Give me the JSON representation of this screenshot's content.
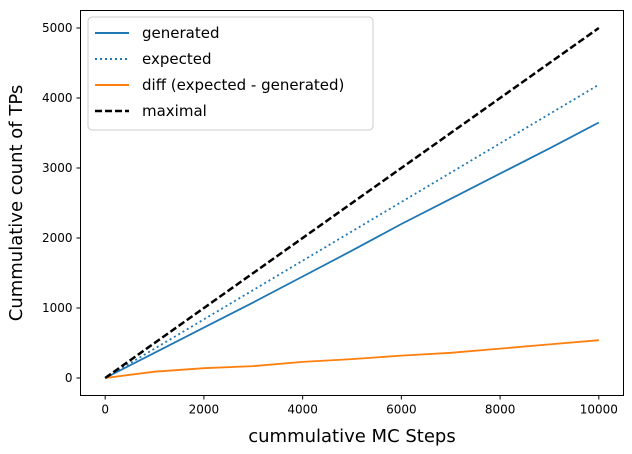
{
  "chart_data": {
    "type": "line",
    "title": "",
    "xlabel": "cummulative MC Steps",
    "ylabel": "Cummulative count of TPs",
    "xlim": [
      -500,
      10500
    ],
    "ylim": [
      -250,
      5250
    ],
    "xticks": [
      0,
      2000,
      4000,
      6000,
      8000,
      10000
    ],
    "yticks": [
      0,
      1000,
      2000,
      3000,
      4000,
      5000
    ],
    "grid": false,
    "legend_position": "top-left",
    "series": [
      {
        "name": "generated",
        "style": "solid",
        "color": "#1f77b4",
        "x": [
          0,
          1000,
          2000,
          3000,
          4000,
          5000,
          6000,
          7000,
          8000,
          9000,
          10000
        ],
        "y": [
          0,
          360,
          720,
          1080,
          1450,
          1820,
          2200,
          2560,
          2920,
          3280,
          3650
        ]
      },
      {
        "name": "expected",
        "style": "dotted",
        "color": "#1f77b4",
        "x": [
          0,
          10000
        ],
        "y": [
          0,
          4190
        ]
      },
      {
        "name": "diff (expected - generated)",
        "style": "solid",
        "color": "#ff7f0e",
        "x": [
          0,
          1000,
          2000,
          3000,
          4000,
          5000,
          6000,
          7000,
          8000,
          9000,
          10000
        ],
        "y": [
          0,
          90,
          140,
          170,
          230,
          270,
          320,
          360,
          420,
          480,
          540
        ]
      },
      {
        "name": "maximal",
        "style": "dashed",
        "color": "#000000",
        "x": [
          0,
          10000
        ],
        "y": [
          0,
          5000
        ]
      }
    ]
  }
}
